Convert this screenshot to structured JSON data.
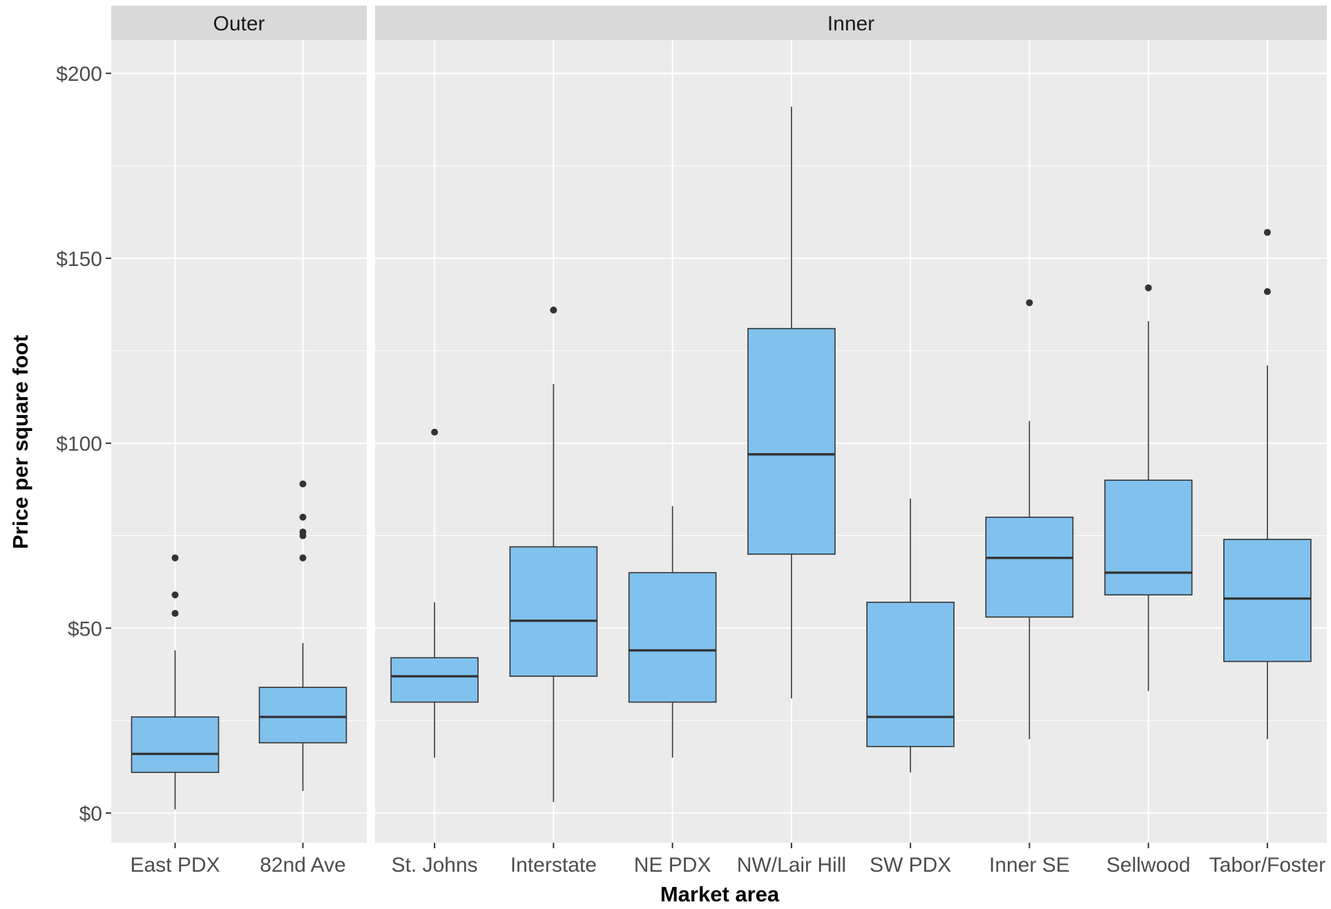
{
  "chart_data": {
    "type": "boxplot",
    "title": "",
    "xlabel": "Market area",
    "ylabel": "Price per square foot",
    "ylim": [
      -8,
      209
    ],
    "yticks": [
      0,
      50,
      100,
      150,
      200
    ],
    "ytick_labels": [
      "$0",
      "$50",
      "$100",
      "$150",
      "$200"
    ],
    "grid": true,
    "fill_color": "#80c1ee",
    "stroke_color": "#333333",
    "panel_background": "#ebebeb",
    "strip_background": "#d9d9d9",
    "panels": [
      {
        "label": "Outer",
        "categories": [
          {
            "name": "East PDX",
            "whisker_low": 1,
            "q1": 11,
            "median": 16,
            "q3": 26,
            "whisker_high": 44,
            "outliers": [
              54,
              59,
              69
            ]
          },
          {
            "name": "82nd Ave",
            "whisker_low": 6,
            "q1": 19,
            "median": 26,
            "q3": 34,
            "whisker_high": 46,
            "outliers": [
              69,
              75,
              76,
              80,
              89
            ]
          }
        ]
      },
      {
        "label": "Inner",
        "categories": [
          {
            "name": "St. Johns",
            "whisker_low": 15,
            "q1": 30,
            "median": 37,
            "q3": 42,
            "whisker_high": 57,
            "outliers": [
              103
            ]
          },
          {
            "name": "Interstate",
            "whisker_low": 3,
            "q1": 37,
            "median": 52,
            "q3": 72,
            "whisker_high": 116,
            "outliers": [
              136
            ]
          },
          {
            "name": "NE PDX",
            "whisker_low": 15,
            "q1": 30,
            "median": 44,
            "q3": 65,
            "whisker_high": 83,
            "outliers": []
          },
          {
            "name": "NW/Lair Hill",
            "whisker_low": 31,
            "q1": 70,
            "median": 97,
            "q3": 131,
            "whisker_high": 191,
            "outliers": []
          },
          {
            "name": "SW PDX",
            "whisker_low": 11,
            "q1": 18,
            "median": 26,
            "q3": 57,
            "whisker_high": 85,
            "outliers": []
          },
          {
            "name": "Inner SE",
            "whisker_low": 20,
            "q1": 53,
            "median": 69,
            "q3": 80,
            "whisker_high": 106,
            "outliers": [
              138
            ]
          },
          {
            "name": "Sellwood",
            "whisker_low": 33,
            "q1": 59,
            "median": 65,
            "q3": 90,
            "whisker_high": 133,
            "outliers": [
              142
            ]
          },
          {
            "name": "Tabor/Foster",
            "whisker_low": 20,
            "q1": 41,
            "median": 58,
            "q3": 74,
            "whisker_high": 121,
            "outliers": [
              141,
              157
            ]
          }
        ]
      }
    ]
  }
}
